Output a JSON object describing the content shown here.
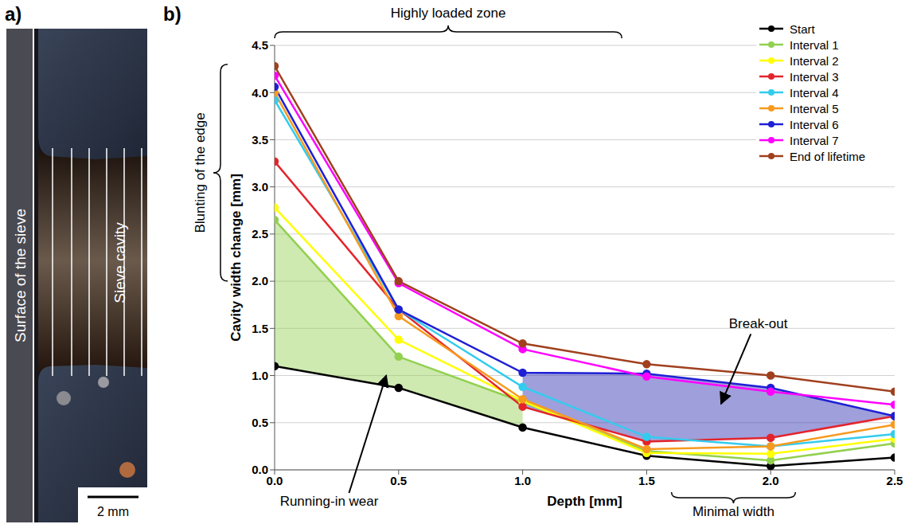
{
  "panel_a": {
    "label": "a)",
    "surface_label": "Surface of the sieve",
    "cavity_label": "Sieve cavity",
    "scale_bar": "2 mm"
  },
  "chart_data": {
    "type": "line",
    "panel_label": "b)",
    "x_label": "Depth [mm]",
    "y_label": "Cavity width change [mm]",
    "x": [
      0,
      0.5,
      1,
      1.5,
      2,
      2.5
    ],
    "xlim": [
      0,
      2.5
    ],
    "xticks": [
      {
        "value": 0,
        "label": "0.0"
      },
      0.5,
      {
        "value": 1,
        "label": "1.0"
      },
      1.5,
      {
        "value": 2,
        "label": "2.0"
      },
      2.5
    ],
    "ylim": [
      0,
      4.5
    ],
    "yticks": [
      {
        "value": 0,
        "label": "0.0"
      },
      0.5,
      {
        "value": 1,
        "label": "1.0"
      },
      1.5,
      {
        "value": 2,
        "label": "2.0"
      },
      2.5,
      {
        "value": 3,
        "label": "3.0"
      },
      3.5,
      {
        "value": 4,
        "label": "4.0"
      },
      4.5
    ],
    "grid": "y",
    "legend": "upper right",
    "marker": "circle",
    "series": [
      {
        "name": "Start",
        "color": "#000000",
        "values": [
          1.1,
          0.87,
          0.45,
          0.15,
          0.04,
          0.13
        ]
      },
      {
        "name": "Interval 1",
        "color": "#92d050",
        "values": [
          2.65,
          1.2,
          0.72,
          0.2,
          0.1,
          0.28
        ]
      },
      {
        "name": "Interval 2",
        "color": "#ffff00",
        "values": [
          2.78,
          1.38,
          0.73,
          0.18,
          0.17,
          0.33
        ]
      },
      {
        "name": "Interval 3",
        "color": "#e3242b",
        "values": [
          3.27,
          1.7,
          0.67,
          0.3,
          0.34,
          0.57
        ]
      },
      {
        "name": "Interval 4",
        "color": "#33ccee",
        "values": [
          3.92,
          1.7,
          0.88,
          0.35,
          0.25,
          0.38
        ]
      },
      {
        "name": "Interval 5",
        "color": "#f79a1e",
        "values": [
          4.0,
          1.63,
          0.75,
          0.22,
          0.25,
          0.48
        ]
      },
      {
        "name": "Interval 6",
        "color": "#1f1fd6",
        "values": [
          4.06,
          1.7,
          1.03,
          1.02,
          0.87,
          0.57
        ]
      },
      {
        "name": "Interval 7",
        "color": "#ff00ff",
        "values": [
          4.18,
          1.98,
          1.28,
          0.99,
          0.83,
          0.69
        ]
      },
      {
        "name": "End of lifetime",
        "color": "#a0401e",
        "values": [
          4.28,
          2.0,
          1.34,
          1.12,
          1.0,
          0.83
        ]
      }
    ],
    "shaded": [
      {
        "label": "Running-in wear",
        "upper": "Interval 1",
        "lower": "Start",
        "x_from": 0,
        "x_to": 1,
        "color": "#92d050"
      },
      {
        "label": "Break-out",
        "upper": "Interval 6",
        "lower": "Interval 3",
        "x_from": 1,
        "x_to": 2.5,
        "color": "#2b2bb0"
      }
    ],
    "annotations": {
      "top_brace": "Highly loaded zone",
      "left_brace": "Blunting of the edge",
      "bottom_brace": "Minimal width"
    }
  }
}
